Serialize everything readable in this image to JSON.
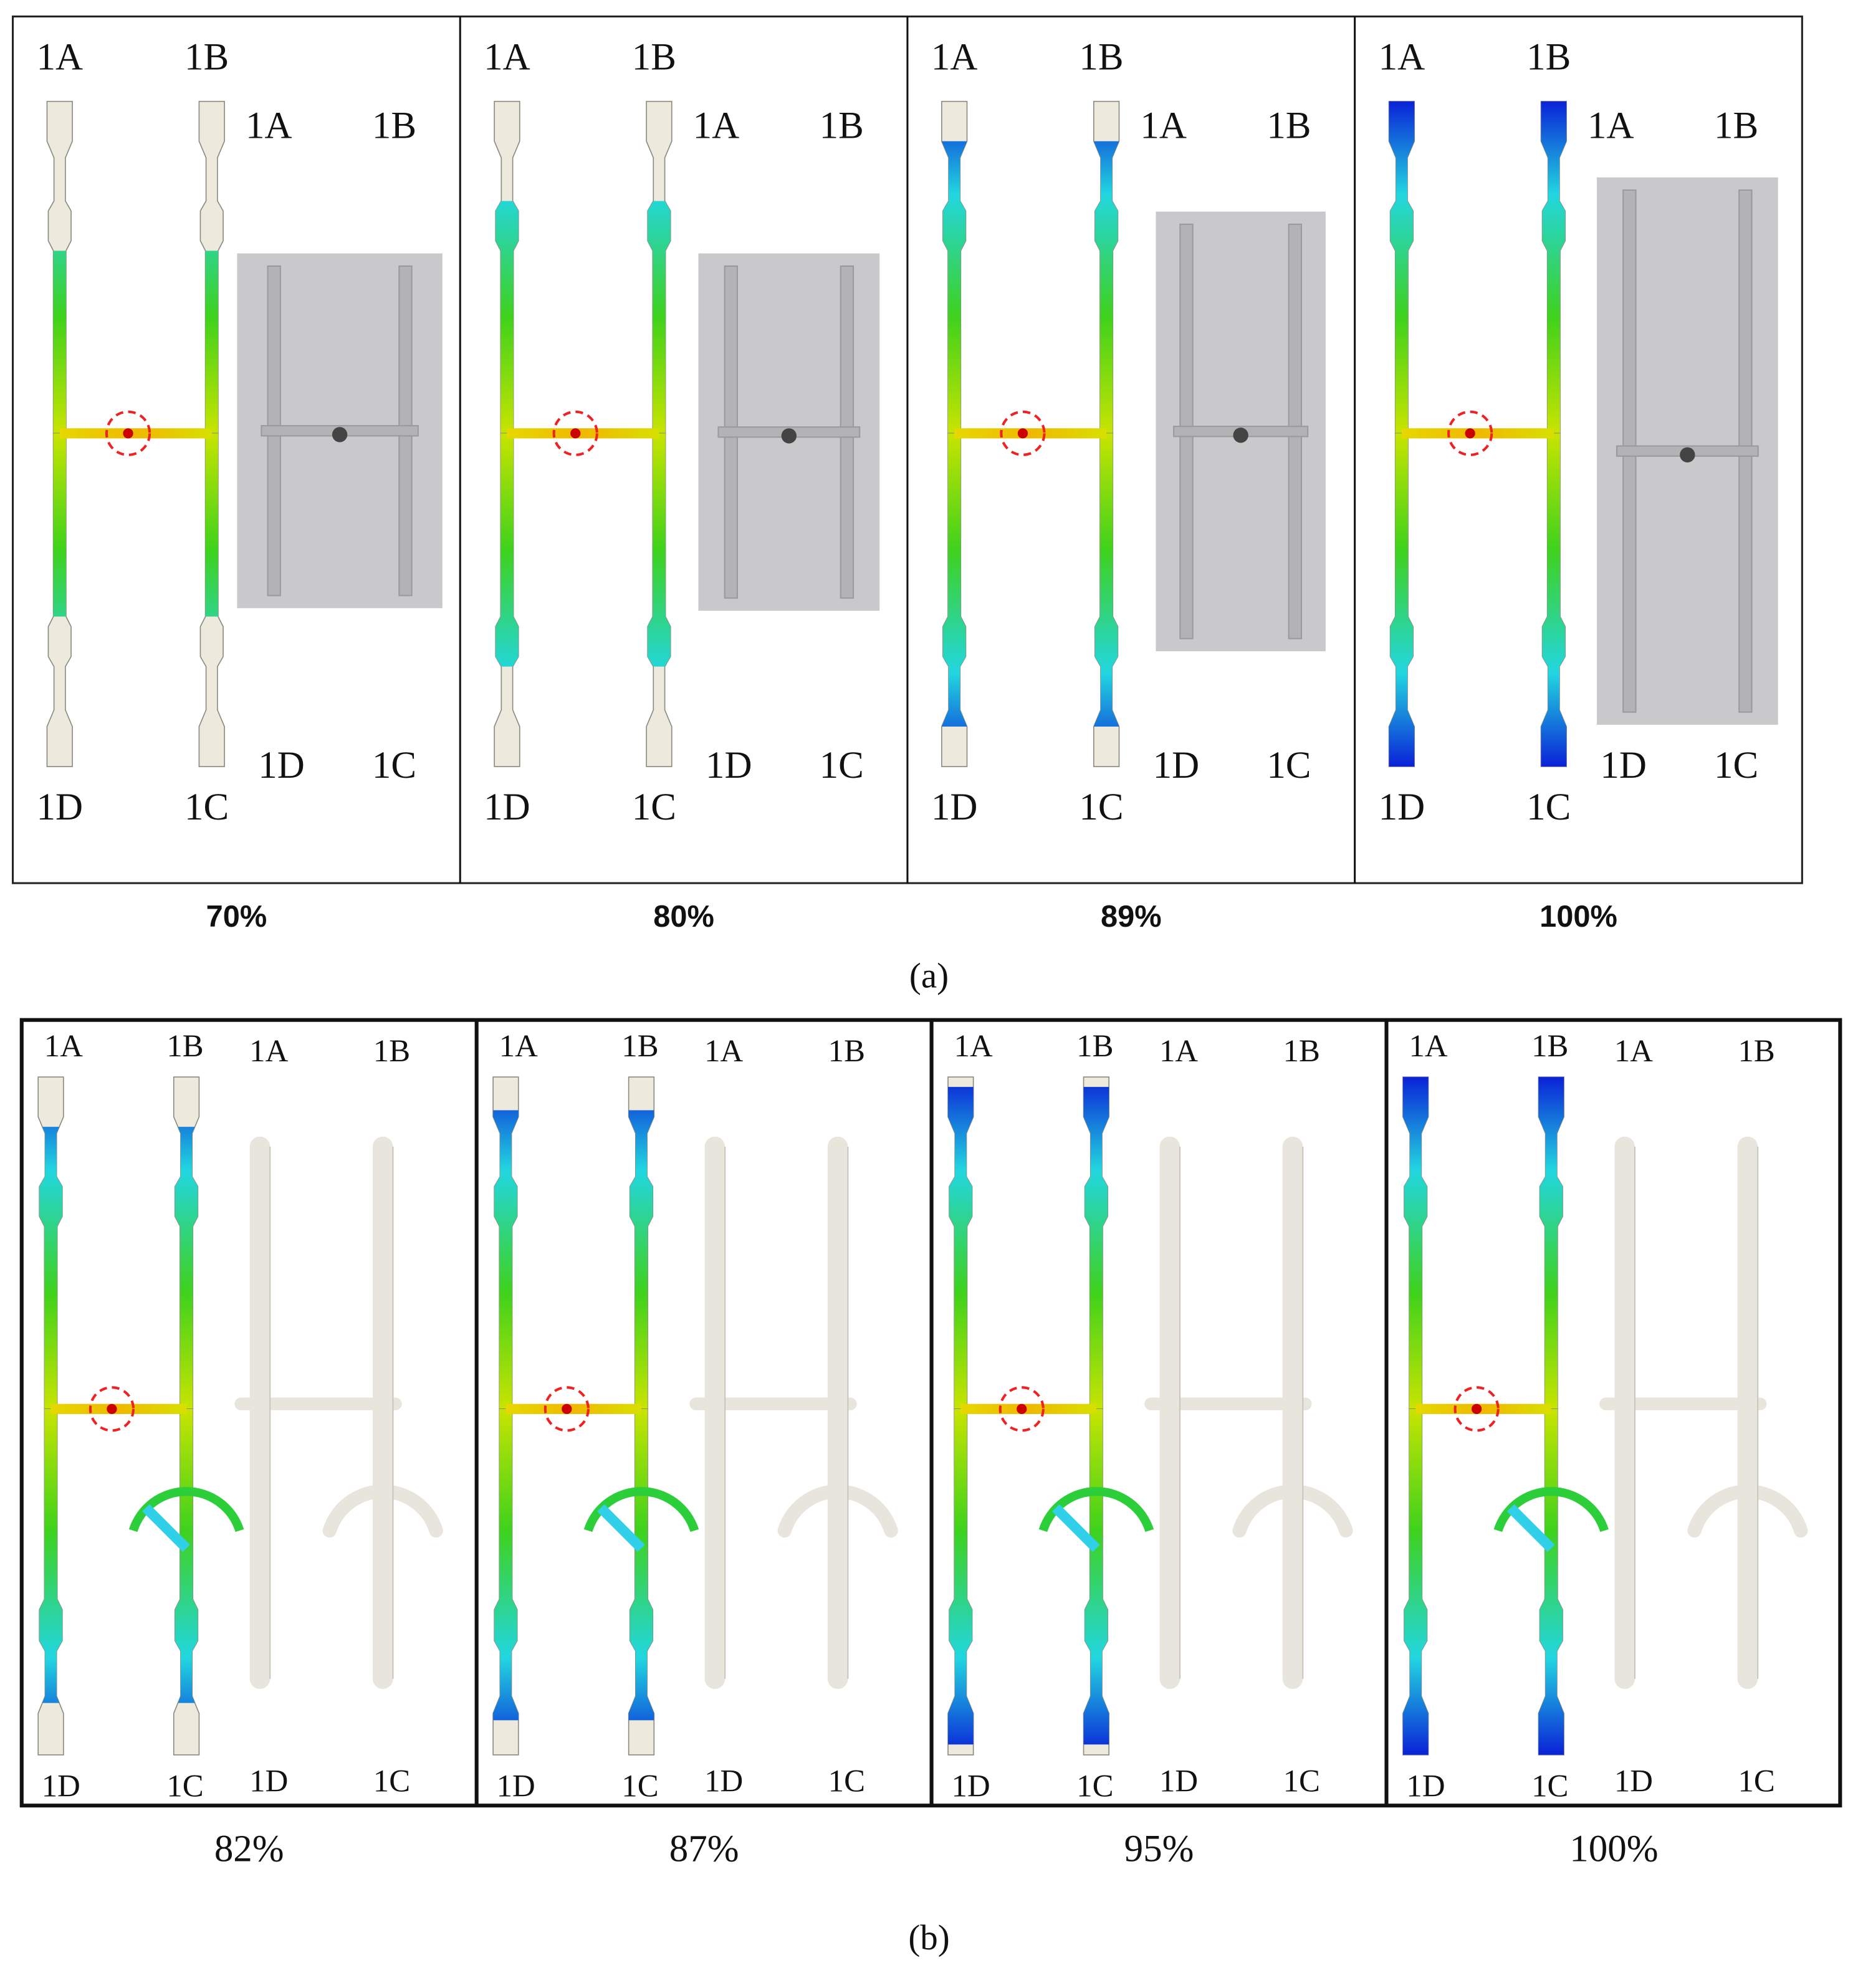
{
  "panels": [
    {
      "caption": "(a)",
      "cells": [
        {
          "sim_labels": [
            "1A",
            "1B",
            "1D",
            "1C"
          ],
          "photo_labels": [
            "1A",
            "1B",
            "1D",
            "1C"
          ],
          "percent": "70%"
        },
        {
          "sim_labels": [
            "1A",
            "1B",
            "1D",
            "1C"
          ],
          "photo_labels": [
            "1A",
            "1B",
            "1D",
            "1C"
          ],
          "percent": "80%"
        },
        {
          "sim_labels": [
            "1A",
            "1B",
            "1D",
            "1C"
          ],
          "photo_labels": [
            "1A",
            "1B",
            "1D",
            "1C"
          ],
          "percent": "89%"
        },
        {
          "sim_labels": [
            "1A",
            "1B",
            "1D",
            "1C"
          ],
          "photo_labels": [
            "1A",
            "1B",
            "1D",
            "1C"
          ],
          "percent": "100%"
        }
      ]
    },
    {
      "caption": "(b)",
      "cells": [
        {
          "sim_labels": [
            "1A",
            "1B",
            "1D",
            "1C"
          ],
          "photo_labels": [
            "1A",
            "1B",
            "1D",
            "1C"
          ],
          "percent": "82%"
        },
        {
          "sim_labels": [
            "1A",
            "1B",
            "1D",
            "1C"
          ],
          "photo_labels": [
            "1A",
            "1B",
            "1D",
            "1C"
          ],
          "percent": "87%"
        },
        {
          "sim_labels": [
            "1A",
            "1B",
            "1D",
            "1C"
          ],
          "photo_labels": [
            "1A",
            "1B",
            "1D",
            "1C"
          ],
          "percent": "95%"
        },
        {
          "sim_labels": [
            "1A",
            "1B",
            "1D",
            "1C"
          ],
          "photo_labels": [
            "1A",
            "1B",
            "1D",
            "1C"
          ],
          "percent": "100%"
        }
      ]
    }
  ]
}
